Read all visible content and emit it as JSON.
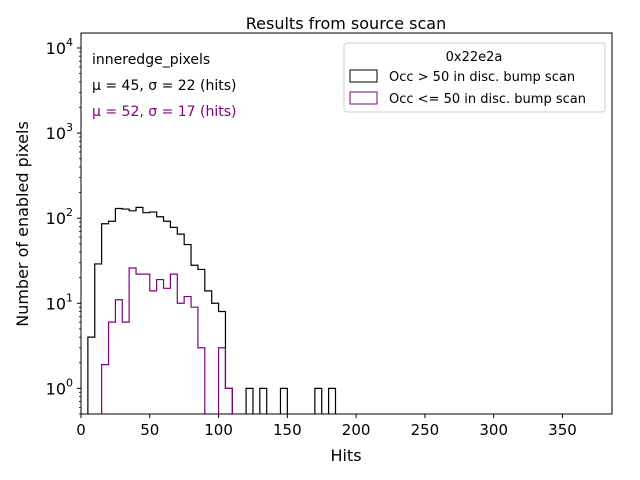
{
  "chart_data": {
    "type": "histogram",
    "title": "Results from source scan",
    "xlabel": "Hits",
    "ylabel": "Number of enabled pixels",
    "xlim": [
      0,
      386
    ],
    "ylim": [
      0.5,
      15000
    ],
    "yscale": "log",
    "grid": false,
    "legend_placement": "top-right",
    "legend_title": "0x22e2a",
    "x_ticks": [
      {
        "value": 0,
        "label": "0"
      },
      {
        "value": 50,
        "label": "50"
      },
      {
        "value": 100,
        "label": "100"
      },
      {
        "value": 150,
        "label": "150"
      },
      {
        "value": 200,
        "label": "200"
      },
      {
        "value": 250,
        "label": "250"
      },
      {
        "value": 300,
        "label": "300"
      },
      {
        "value": 350,
        "label": "350"
      }
    ],
    "y_ticks": [
      {
        "value": 1,
        "base": "10",
        "exp": "0"
      },
      {
        "value": 10,
        "base": "10",
        "exp": "1"
      },
      {
        "value": 100,
        "base": "10",
        "exp": "2"
      },
      {
        "value": 1000,
        "base": "10",
        "exp": "3"
      },
      {
        "value": 10000,
        "base": "10",
        "exp": "4"
      }
    ],
    "annotations": [
      {
        "text": "inneredge_pixels",
        "color": "#000000"
      },
      {
        "text": "μ = 45, σ = 22 (hits)",
        "color": "#000000"
      },
      {
        "text": "μ = 52, σ = 17 (hits)",
        "color": "#800080"
      }
    ],
    "bin_width": 5,
    "series": [
      {
        "name": "Occ > 50 in disc. bump scan",
        "color": "#000000",
        "bins": [
          [
            5,
            4
          ],
          [
            10,
            29
          ],
          [
            15,
            86
          ],
          [
            20,
            92
          ],
          [
            25,
            130
          ],
          [
            30,
            128
          ],
          [
            35,
            122
          ],
          [
            40,
            134
          ],
          [
            45,
            116
          ],
          [
            50,
            118
          ],
          [
            55,
            104
          ],
          [
            60,
            92
          ],
          [
            65,
            78
          ],
          [
            70,
            65
          ],
          [
            75,
            49
          ],
          [
            80,
            28
          ],
          [
            85,
            25
          ],
          [
            90,
            14
          ],
          [
            95,
            10
          ],
          [
            100,
            8
          ],
          [
            105,
            1
          ],
          [
            120,
            1
          ],
          [
            130,
            1
          ],
          [
            145,
            1
          ],
          [
            170,
            1
          ],
          [
            180,
            1
          ]
        ]
      },
      {
        "name": "Occ <= 50 in disc. bump scan",
        "color": "#800080",
        "bins": [
          [
            15,
            1.9
          ],
          [
            20,
            6
          ],
          [
            25,
            11
          ],
          [
            30,
            6
          ],
          [
            35,
            26
          ],
          [
            40,
            22
          ],
          [
            45,
            22
          ],
          [
            50,
            14
          ],
          [
            55,
            19
          ],
          [
            60,
            15
          ],
          [
            65,
            22
          ],
          [
            70,
            10
          ],
          [
            75,
            12
          ],
          [
            80,
            9
          ],
          [
            85,
            3
          ],
          [
            100,
            3
          ],
          [
            105,
            1
          ]
        ]
      }
    ]
  }
}
